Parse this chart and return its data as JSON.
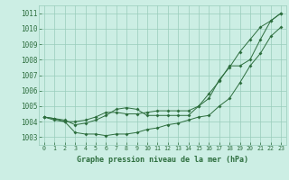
{
  "xlabel": "Graphe pression niveau de la mer (hPa)",
  "bg_color": "#cceee4",
  "grid_color": "#99ccbb",
  "line_color": "#2d6e3e",
  "ylim": [
    1002.5,
    1011.5
  ],
  "xlim": [
    -0.5,
    23.5
  ],
  "yticks": [
    1003,
    1004,
    1005,
    1006,
    1007,
    1008,
    1009,
    1010,
    1011
  ],
  "xticks": [
    0,
    1,
    2,
    3,
    4,
    5,
    6,
    7,
    8,
    9,
    10,
    11,
    12,
    13,
    14,
    15,
    16,
    17,
    18,
    19,
    20,
    21,
    22,
    23
  ],
  "series": [
    [
      1004.3,
      1004.1,
      1004.0,
      1004.0,
      1004.1,
      1004.3,
      1004.6,
      1004.6,
      1004.5,
      1004.5,
      1004.6,
      1004.7,
      1004.7,
      1004.7,
      1004.7,
      1005.0,
      1005.5,
      1006.7,
      1007.5,
      1008.5,
      1009.3,
      1010.1,
      1010.5,
      1011.0
    ],
    [
      1004.3,
      1004.2,
      1004.0,
      1003.3,
      1003.2,
      1003.2,
      1003.1,
      1003.2,
      1003.2,
      1003.3,
      1003.5,
      1003.6,
      1003.8,
      1003.9,
      1004.1,
      1004.3,
      1004.4,
      1005.0,
      1005.5,
      1006.5,
      1007.6,
      1008.4,
      1009.5,
      1010.1
    ],
    [
      1004.3,
      1004.2,
      1004.1,
      1003.8,
      1003.9,
      1004.1,
      1004.4,
      1004.8,
      1004.9,
      1004.8,
      1004.4,
      1004.4,
      1004.4,
      1004.4,
      1004.4,
      1005.0,
      1005.8,
      1006.6,
      1007.6,
      1007.6,
      1008.0,
      1009.3,
      1010.5,
      1011.0
    ]
  ]
}
